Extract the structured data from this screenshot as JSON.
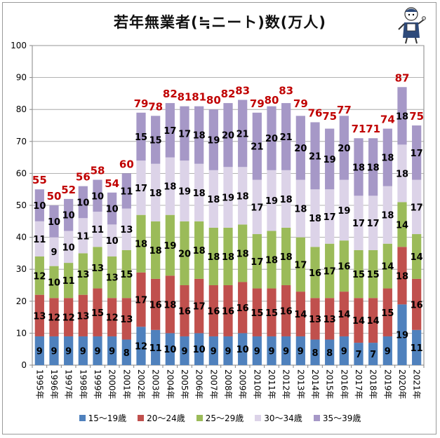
{
  "chart_data": {
    "type": "bar",
    "stacked": true,
    "title": "若年無業者(≒ニート)数(万人)",
    "categories": [
      "1995年",
      "1996年",
      "1997年",
      "1998年",
      "1999年",
      "2000年",
      "2001年",
      "2002年",
      "2003年",
      "2004年",
      "2005年",
      "2006年",
      "2007年",
      "2008年",
      "2009年",
      "2010年",
      "2011年",
      "2012年",
      "2013年",
      "2014年",
      "2015年",
      "2016年",
      "2017年",
      "2018年",
      "2019年",
      "2020年",
      "2021年"
    ],
    "series": [
      {
        "name": "15〜19歳",
        "color": "#4f81bd",
        "values": [
          9,
          9,
          9,
          9,
          9,
          9,
          8,
          12,
          11,
          10,
          9,
          10,
          9,
          9,
          10,
          9,
          9,
          9,
          9,
          8,
          8,
          9,
          7,
          7,
          9,
          19,
          11
        ]
      },
      {
        "name": "20〜24歳",
        "color": "#c0504d",
        "values": [
          13,
          12,
          12,
          13,
          15,
          12,
          13,
          17,
          16,
          18,
          16,
          17,
          16,
          16,
          16,
          15,
          15,
          16,
          14,
          13,
          13,
          14,
          14,
          14,
          15,
          18,
          16
        ]
      },
      {
        "name": "25〜29歳",
        "color": "#9bbb59",
        "values": [
          12,
          10,
          11,
          13,
          13,
          13,
          15,
          18,
          18,
          19,
          20,
          18,
          18,
          18,
          18,
          17,
          18,
          18,
          17,
          16,
          17,
          16,
          15,
          15,
          14,
          14,
          14
        ]
      },
      {
        "name": "30〜34歳",
        "color": "#dcd3e8",
        "values": [
          11,
          9,
          10,
          11,
          11,
          10,
          13,
          17,
          18,
          18,
          19,
          18,
          18,
          19,
          18,
          17,
          19,
          18,
          18,
          18,
          17,
          19,
          17,
          17,
          18,
          18,
          17
        ]
      },
      {
        "name": "35〜39歳",
        "color": "#a698c7",
        "values": [
          10,
          10,
          10,
          10,
          10,
          10,
          11,
          15,
          15,
          17,
          17,
          18,
          19,
          20,
          21,
          21,
          20,
          21,
          20,
          21,
          19,
          20,
          18,
          18,
          18,
          18,
          17
        ]
      }
    ],
    "totals": [
      55,
      50,
      52,
      56,
      58,
      54,
      60,
      79,
      78,
      82,
      81,
      81,
      80,
      82,
      83,
      79,
      80,
      83,
      79,
      76,
      75,
      77,
      71,
      71,
      74,
      87,
      75
    ],
    "ylim": [
      0,
      100
    ],
    "yticks": [
      0,
      10,
      20,
      30,
      40,
      50,
      60,
      70,
      80,
      90,
      100
    ],
    "grid": true,
    "legend_position": "bottom",
    "total_label_color": "#c00000"
  }
}
